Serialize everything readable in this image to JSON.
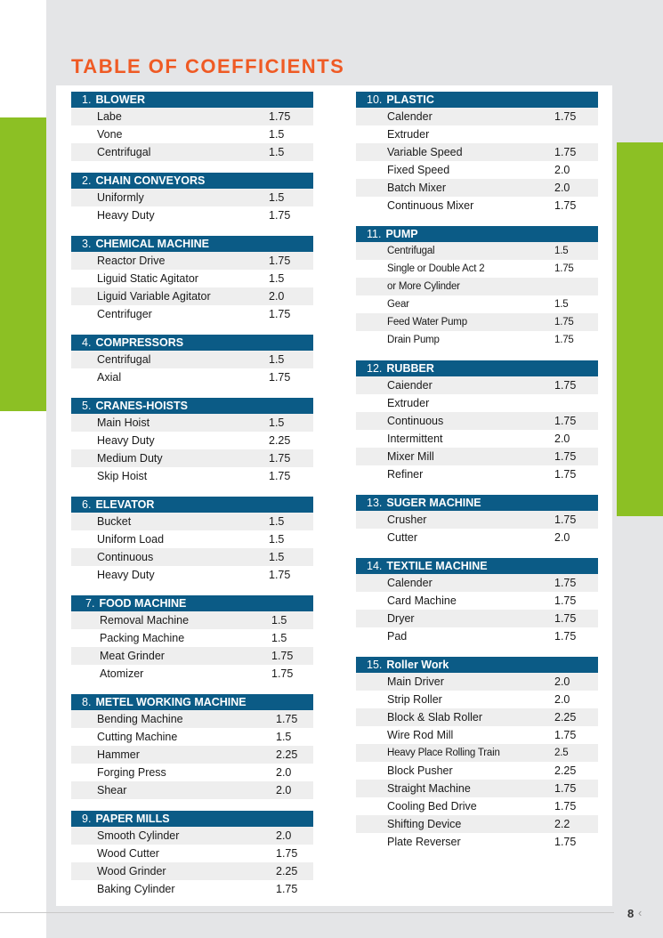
{
  "title": "TABLE OF COEFFICIENTS",
  "page_number": "8",
  "page_arrow": "‹",
  "colors": {
    "header": "#0b5b86",
    "accent": "#ef5a24",
    "green": "#8cc024"
  },
  "left_sections": [
    {
      "num": "1.",
      "name": "BLOWER",
      "items": [
        {
          "label": "Labe",
          "value": "1.75"
        },
        {
          "label": "Vone",
          "value": "1.5"
        },
        {
          "label": "Centrifugal",
          "value": "1.5"
        }
      ]
    },
    {
      "num": "2.",
      "name": "CHAIN CONVEYORS",
      "items": [
        {
          "label": "Uniformly",
          "value": "1.5"
        },
        {
          "label": "Heavy Duty",
          "value": "1.75"
        }
      ]
    },
    {
      "num": "3.",
      "name": "CHEMICAL MACHINE",
      "items": [
        {
          "label": "Reactor Drive",
          "value": "1.75"
        },
        {
          "label": "Liguid Static Agitator",
          "value": "1.5"
        },
        {
          "label": "Liguid Variable Agitator",
          "value": "2.0"
        },
        {
          "label": "Centrifuger",
          "value": "1.75"
        }
      ]
    },
    {
      "num": "4.",
      "name": "COMPRESSORS",
      "items": [
        {
          "label": "Centrifugal",
          "value": "1.5"
        },
        {
          "label": "Axial",
          "value": "1.75"
        }
      ]
    },
    {
      "num": "5.",
      "name": "CRANES-HOISTS",
      "items": [
        {
          "label": "Main Hoist",
          "value": "1.5"
        },
        {
          "label": "Heavy Duty",
          "value": "2.25"
        },
        {
          "label": "Medium Duty",
          "value": "1.75"
        },
        {
          "label": "Skip Hoist",
          "value": "1.75"
        }
      ]
    },
    {
      "num": "6.",
      "name": "ELEVATOR",
      "items": [
        {
          "label": "Bucket",
          "value": "1.5"
        },
        {
          "label": "Uniform Load",
          "value": "1.5"
        },
        {
          "label": "Continuous",
          "value": "1.5"
        },
        {
          "label": "Heavy Duty",
          "value": "1.75"
        }
      ]
    },
    {
      "num": "7.",
      "name": "FOOD MACHINE",
      "items": [
        {
          "label": "Removal Machine",
          "value": "1.5"
        },
        {
          "label": "Packing Machine",
          "value": "1.5"
        },
        {
          "label": "Meat Grinder",
          "value": "1.75"
        },
        {
          "label": "Atomizer",
          "value": "1.75"
        }
      ]
    },
    {
      "num": "8.",
      "name": "METEL WORKING MACHINE",
      "items": [
        {
          "label": "Bending Machine",
          "value": "1.75"
        },
        {
          "label": "Cutting Machine",
          "value": "1.5"
        },
        {
          "label": "Hammer",
          "value": "2.25"
        },
        {
          "label": "Forging Press",
          "value": "2.0"
        },
        {
          "label": "Shear",
          "value": "2.0"
        }
      ]
    },
    {
      "num": "9.",
      "name": "PAPER MILLS",
      "items": [
        {
          "label": "Smooth Cylinder",
          "value": "2.0"
        },
        {
          "label": "Wood Cutter",
          "value": "1.75"
        },
        {
          "label": "Wood Grinder",
          "value": "2.25"
        },
        {
          "label": "Baking Cylinder",
          "value": "1.75"
        }
      ]
    }
  ],
  "right_sections": [
    {
      "num": "10.",
      "name": "PLASTIC",
      "items": [
        {
          "label": "Calender",
          "value": "1.75"
        },
        {
          "label": "Extruder",
          "value": ""
        },
        {
          "label": "Variable Speed",
          "value": "1.75"
        },
        {
          "label": "Fixed Speed",
          "value": "2.0"
        },
        {
          "label": "Batch Mixer",
          "value": "2.0"
        },
        {
          "label": "Continuous Mixer",
          "value": "1.75"
        }
      ]
    },
    {
      "num": "11.",
      "name": "PUMP",
      "items": [
        {
          "label": "Centrifugal",
          "value": "1.5"
        },
        {
          "label": "Single or Double Act 2",
          "value": "1.75"
        },
        {
          "label": "or More Cylinder",
          "value": ""
        },
        {
          "label": "Gear",
          "value": "1.5"
        },
        {
          "label": "Feed Water Pump",
          "value": "1.75"
        },
        {
          "label": "Drain Pump",
          "value": "1.75"
        }
      ]
    },
    {
      "num": "12.",
      "name": "RUBBER",
      "items": [
        {
          "label": "Caiender",
          "value": "1.75"
        },
        {
          "label": "Extruder",
          "value": ""
        },
        {
          "label": "Continuous",
          "value": "1.75"
        },
        {
          "label": "Intermittent",
          "value": "2.0"
        },
        {
          "label": "Mixer Mill",
          "value": "1.75"
        },
        {
          "label": "Refiner",
          "value": "1.75"
        }
      ]
    },
    {
      "num": "13.",
      "name": "SUGER MACHINE",
      "items": [
        {
          "label": "Crusher",
          "value": "1.75"
        },
        {
          "label": "Cutter",
          "value": "2.0"
        }
      ]
    },
    {
      "num": "14.",
      "name": "TEXTILE MACHINE",
      "items": [
        {
          "label": "Calender",
          "value": "1.75"
        },
        {
          "label": "Card Machine",
          "value": "1.75"
        },
        {
          "label": "Dryer",
          "value": "1.75"
        },
        {
          "label": "Pad",
          "value": "1.75"
        }
      ]
    },
    {
      "num": "15.",
      "name": "Roller Work",
      "items": [
        {
          "label": "Main Driver",
          "value": "2.0"
        },
        {
          "label": "Strip Roller",
          "value": "2.0"
        },
        {
          "label": "Block & Slab Roller",
          "value": "2.25"
        },
        {
          "label": "Wire Rod Mill",
          "value": "1.75"
        },
        {
          "label": "Heavy Place Rolling Train",
          "value": "2.5"
        },
        {
          "label": "Block Pusher",
          "value": "2.25"
        },
        {
          "label": "Straight Machine",
          "value": "1.75"
        },
        {
          "label": "Cooling Bed Drive",
          "value": "1.75"
        },
        {
          "label": "Shifting Device",
          "value": "2.2"
        },
        {
          "label": "Plate Reverser",
          "value": "1.75"
        }
      ]
    }
  ]
}
